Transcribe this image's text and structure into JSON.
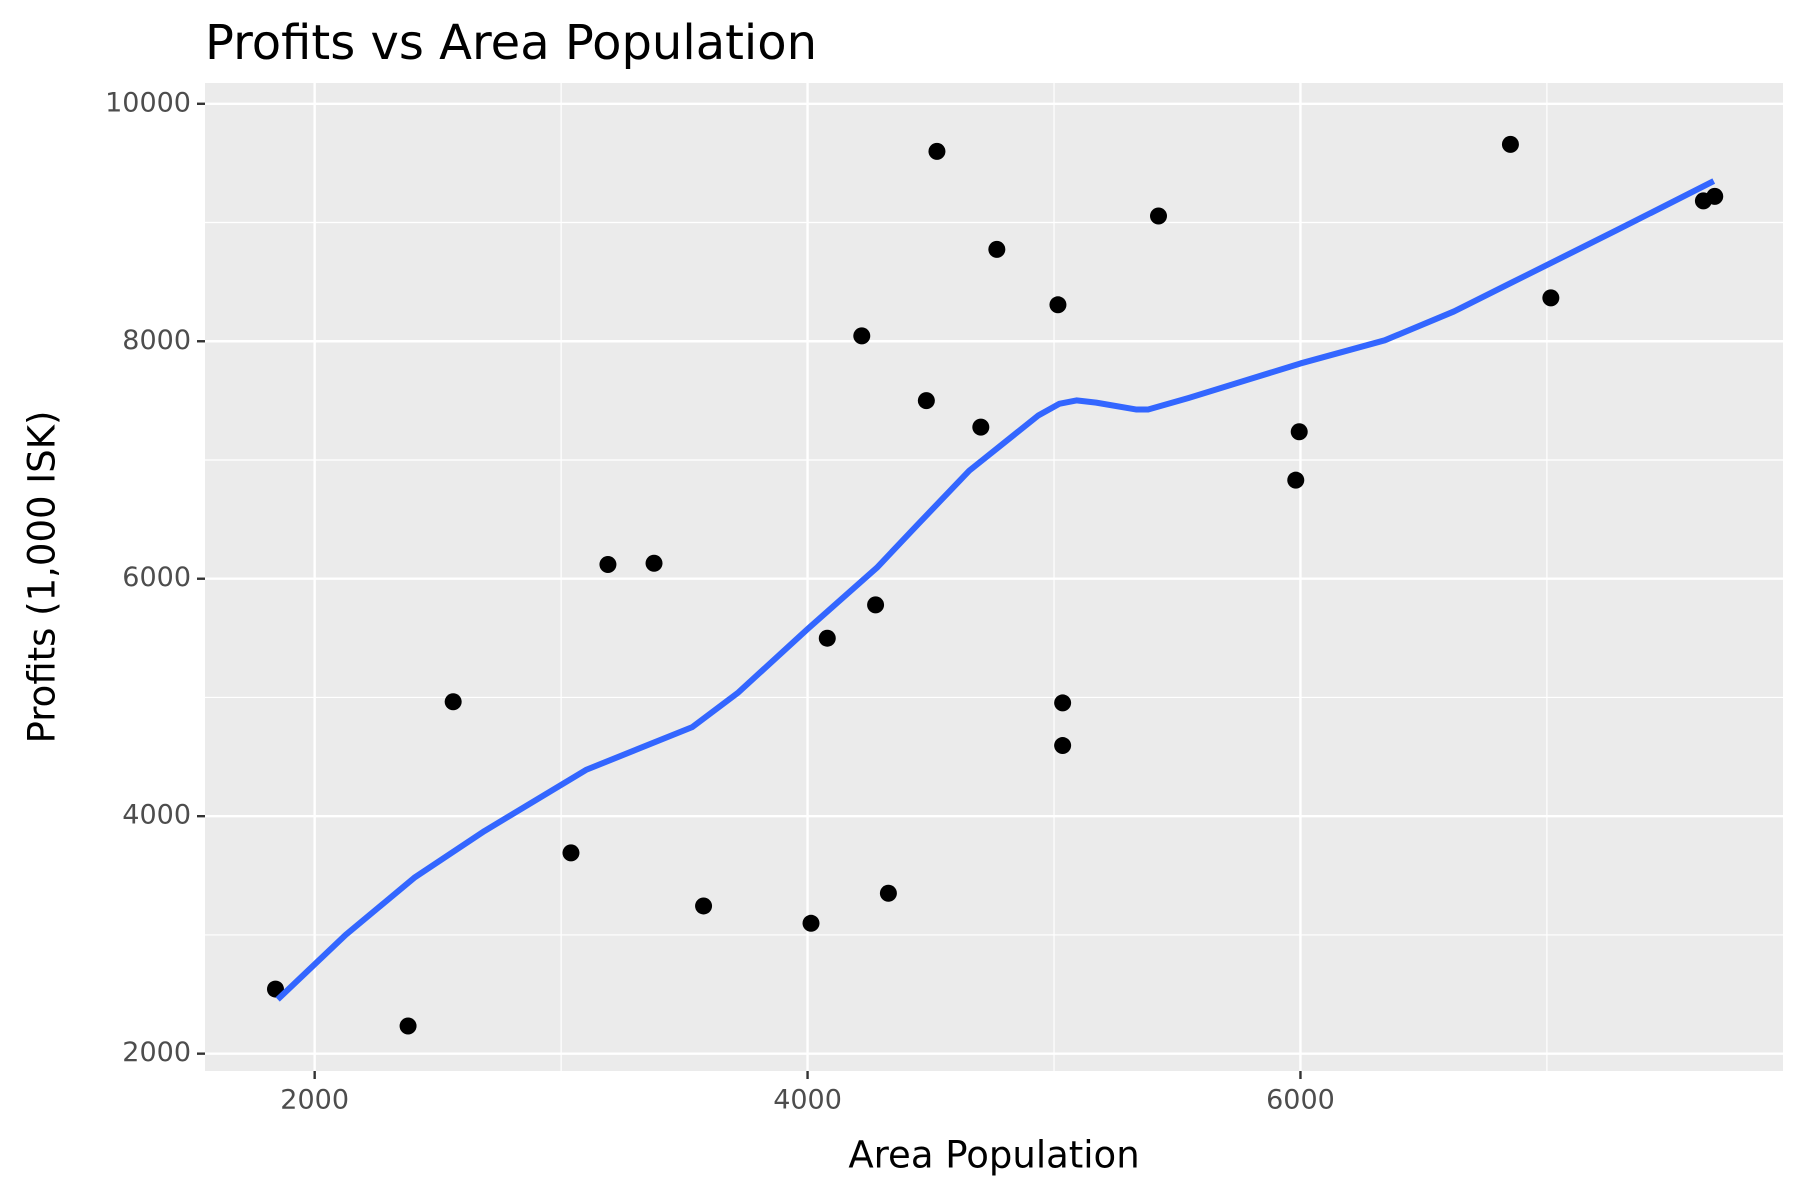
{
  "chart_data": {
    "type": "scatter",
    "title": "Profits vs Area Population",
    "x_label": "Area Population",
    "y_label": "Profits (1,000 ISK)",
    "xlim": [
      1555,
      7958
    ],
    "ylim": [
      1854,
      10175
    ],
    "xticks": [
      2000,
      4000,
      6000
    ],
    "yticks": [
      2000,
      4000,
      6000,
      8000,
      10000
    ],
    "xminor": [
      3000,
      5000,
      7000
    ],
    "yminor": [
      3000,
      5000,
      7000,
      9000
    ],
    "grid": true,
    "series": [
      {
        "type": "scatter",
        "color": "#000000",
        "x": [
          1841,
          2379,
          2562,
          3040,
          3190,
          3377,
          3578,
          4014,
          4080,
          4220,
          4276,
          4328,
          4482,
          4525,
          4703,
          4768,
          5016,
          5035,
          5035,
          5424,
          5981,
          5995,
          6852,
          7016,
          7635,
          7681
        ],
        "values": [
          2544,
          2233,
          4964,
          3691,
          6120,
          6130,
          3244,
          3098,
          5499,
          8045,
          5780,
          3351,
          7500,
          9599,
          7277,
          8774,
          8307,
          4954,
          4595,
          9055,
          6830,
          7238,
          9658,
          8365,
          9182,
          9220
        ]
      },
      {
        "type": "line",
        "color": "#3366ff",
        "x": [
          1850,
          2126,
          2407,
          2689,
          3101,
          3532,
          3719,
          4000,
          4281,
          4445,
          4656,
          4937,
          5021,
          5091,
          5171,
          5335,
          5382,
          5546,
          6000,
          6342,
          6623,
          6857,
          7279,
          7677
        ],
        "values": [
          2457,
          3001,
          3486,
          3875,
          4390,
          4750,
          5042,
          5576,
          6092,
          6452,
          6910,
          7376,
          7473,
          7502,
          7483,
          7425,
          7425,
          7522,
          7813,
          8008,
          8251,
          8494,
          8931,
          9349
        ]
      }
    ]
  }
}
